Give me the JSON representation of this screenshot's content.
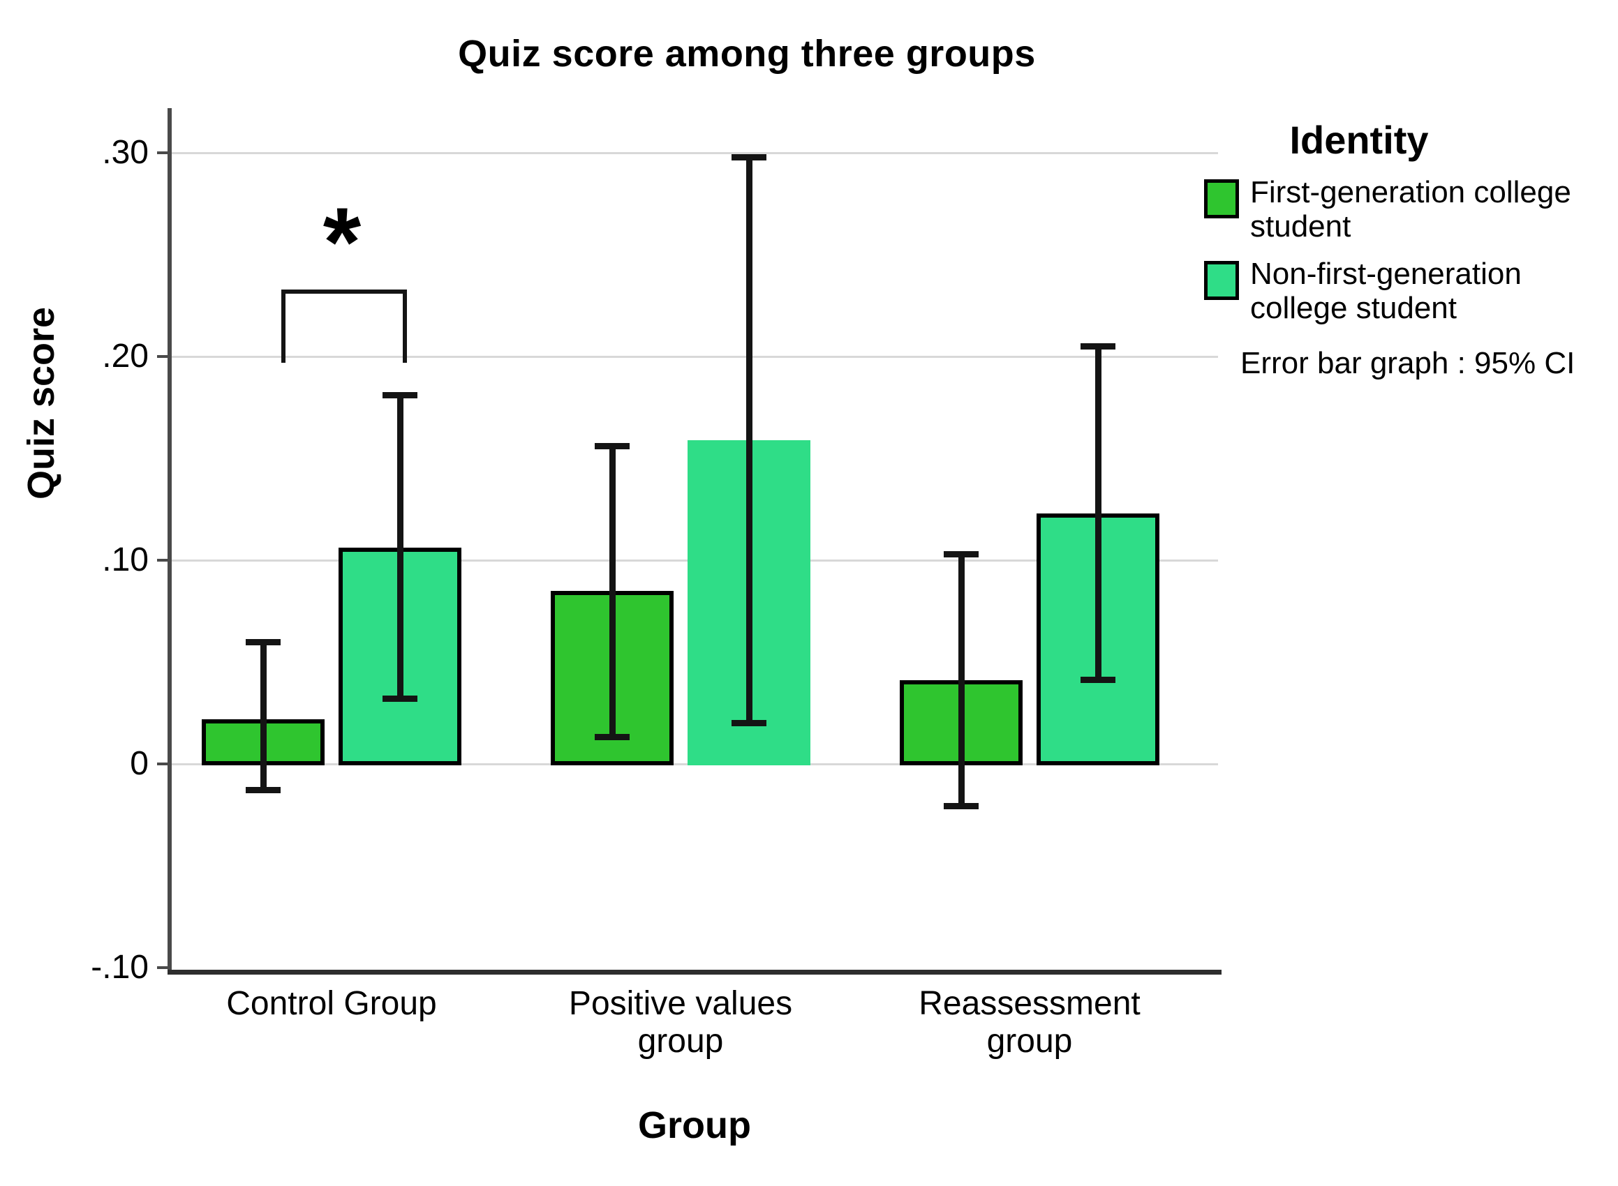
{
  "chart_data": {
    "type": "bar",
    "title": "Quiz score among three groups",
    "xlabel": "Group",
    "ylabel": "Quiz score",
    "categories": [
      "Control Group",
      "Positive values\ngroup",
      "Reassessment\ngroup"
    ],
    "ylim": [
      -0.102,
      0.32
    ],
    "grid": true,
    "yticks": [
      {
        "label": ".30",
        "v": 0.3
      },
      {
        "label": ".20",
        "v": 0.2
      },
      {
        "label": ".10",
        "v": 0.1
      },
      {
        "label": "0",
        "v": 0.0
      },
      {
        "label": "-.10",
        "v": -0.1
      }
    ],
    "series": [
      {
        "name": "First-generation college student",
        "color": "#2FC52F",
        "values": [
          0.022,
          0.085,
          0.041
        ],
        "ci_low": [
          -0.013,
          0.013,
          -0.021
        ],
        "ci_high": [
          0.06,
          0.156,
          0.103
        ]
      },
      {
        "name": "Non-first-generation college student",
        "color": "#2FDD87",
        "values": [
          0.106,
          0.159,
          0.123
        ],
        "ci_low": [
          0.032,
          0.02,
          0.041
        ],
        "ci_high": [
          0.181,
          0.298,
          0.205
        ]
      }
    ],
    "legend": {
      "title": "Identity",
      "position": "right",
      "note": "Error bar graph : 95% CI"
    },
    "error_bars": "95% CI",
    "significance": {
      "group_index": 0,
      "label": "*",
      "bracket_top": 0.233,
      "bracket_bottom": 0.197
    },
    "style": {
      "borderless_bar": {
        "series": 1,
        "group": 1
      }
    },
    "colors": {
      "grid": "#d8d8d8",
      "axis": "#4a4a4a",
      "axis_bottom": "#2e2e2e",
      "error": "#141414",
      "bar_border": "#000000"
    }
  }
}
